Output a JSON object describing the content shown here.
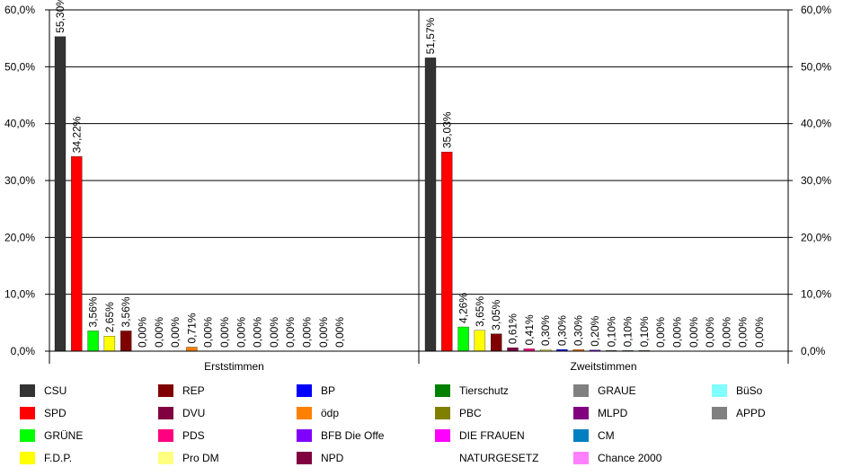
{
  "chart_data": {
    "type": "bar",
    "ylim": [
      0,
      60
    ],
    "yticks": [
      "0,0%",
      "10,0%",
      "20,0%",
      "30,0%",
      "40,0%",
      "50,0%",
      "60,0%"
    ],
    "grid": true,
    "legend_placement": "bottom",
    "groups": [
      {
        "label": "Erststimmen",
        "bars": [
          {
            "party": "CSU",
            "value": 55.3,
            "label": "55,30%",
            "color": "#333333"
          },
          {
            "party": "SPD",
            "value": 34.22,
            "label": "34,22%",
            "color": "#ff0000"
          },
          {
            "party": "GRÜNE",
            "value": 3.56,
            "label": "3,56%",
            "color": "#00ff00"
          },
          {
            "party": "F.D.P.",
            "value": 2.65,
            "label": "2,65%",
            "color": "#ffff00"
          },
          {
            "party": "REP",
            "value": 3.56,
            "label": "3,56%",
            "color": "#800000"
          },
          {
            "party": "DVU",
            "value": 0.0,
            "label": "0,00%",
            "color": "#800040"
          },
          {
            "party": "PDS",
            "value": 0.0,
            "label": "0,00%",
            "color": "#ff0080"
          },
          {
            "party": "Pro DM",
            "value": 0.0,
            "label": "0,00%",
            "color": "#ffff80"
          },
          {
            "party": "ödp",
            "value": 0.71,
            "label": "0,71%",
            "color": "#ff8000"
          },
          {
            "party": "BP",
            "value": 0.0,
            "label": "0,00%",
            "color": "#0000ff"
          },
          {
            "party": "BFB Die Offe",
            "value": 0.0,
            "label": "0,00%",
            "color": "#8000ff"
          },
          {
            "party": "NPD",
            "value": 0.0,
            "label": "0,00%",
            "color": "#800040"
          },
          {
            "party": "Tierschutz",
            "value": 0.0,
            "label": "0,00%",
            "color": "#008000"
          },
          {
            "party": "PBC",
            "value": 0.0,
            "label": "0,00%",
            "color": "#808000"
          },
          {
            "party": "DIE FRAUEN",
            "value": 0.0,
            "label": "0,00%",
            "color": "#ff00ff"
          },
          {
            "party": "GRAUE",
            "value": 0.0,
            "label": "0,00%",
            "color": "#808080"
          },
          {
            "party": "MLPD",
            "value": 0.0,
            "label": "0,00%",
            "color": "#800080"
          },
          {
            "party": "CM",
            "value": 0.0,
            "label": "0,00%",
            "color": "#0080c0"
          }
        ]
      },
      {
        "label": "Zweitstimmen",
        "bars": [
          {
            "party": "CSU",
            "value": 51.57,
            "label": "51,57%",
            "color": "#333333"
          },
          {
            "party": "SPD",
            "value": 35.03,
            "label": "35,03%",
            "color": "#ff0000"
          },
          {
            "party": "GRÜNE",
            "value": 4.26,
            "label": "4,26%",
            "color": "#00ff00"
          },
          {
            "party": "F.D.P.",
            "value": 3.65,
            "label": "3,65%",
            "color": "#ffff00"
          },
          {
            "party": "REP",
            "value": 3.05,
            "label": "3,05%",
            "color": "#800000"
          },
          {
            "party": "DVU",
            "value": 0.61,
            "label": "0,61%",
            "color": "#800040"
          },
          {
            "party": "PDS",
            "value": 0.41,
            "label": "0,41%",
            "color": "#ff0080"
          },
          {
            "party": "Pro DM",
            "value": 0.3,
            "label": "0,30%",
            "color": "#ffff80"
          },
          {
            "party": "BP",
            "value": 0.3,
            "label": "0,30%",
            "color": "#0000ff"
          },
          {
            "party": "ödp",
            "value": 0.3,
            "label": "0,30%",
            "color": "#ff8000"
          },
          {
            "party": "BFB Die Offe",
            "value": 0.2,
            "label": "0,20%",
            "color": "#8000ff"
          },
          {
            "party": "NPD",
            "value": 0.1,
            "label": "0,10%",
            "color": "#800040"
          },
          {
            "party": "Tierschutz",
            "value": 0.1,
            "label": "0,10%",
            "color": "#008000"
          },
          {
            "party": "PBC",
            "value": 0.1,
            "label": "0,10%",
            "color": "#808000"
          },
          {
            "party": "DIE FRAUEN",
            "value": 0.0,
            "label": "0,00%",
            "color": "#ff00ff"
          },
          {
            "party": "GRAUE",
            "value": 0.0,
            "label": "0,00%",
            "color": "#808080"
          },
          {
            "party": "MLPD",
            "value": 0.0,
            "label": "0,00%",
            "color": "#800080"
          },
          {
            "party": "CM",
            "value": 0.0,
            "label": "0,00%",
            "color": "#0080c0"
          },
          {
            "party": "Chance 2000",
            "value": 0.0,
            "label": "0,00%",
            "color": "#ff80ff"
          },
          {
            "party": "BüSo",
            "value": 0.0,
            "label": "0,00%",
            "color": "#80ffff"
          },
          {
            "party": "APPD",
            "value": 0.0,
            "label": "0,00%",
            "color": "#808080"
          }
        ]
      }
    ],
    "legend": [
      {
        "label": "CSU",
        "color": "#333333"
      },
      {
        "label": "SPD",
        "color": "#ff0000"
      },
      {
        "label": "GRÜNE",
        "color": "#00ff00"
      },
      {
        "label": "F.D.P.",
        "color": "#ffff00"
      },
      {
        "label": "REP",
        "color": "#800000"
      },
      {
        "label": "DVU",
        "color": "#800040"
      },
      {
        "label": "PDS",
        "color": "#ff0080"
      },
      {
        "label": "Pro DM",
        "color": "#ffff80"
      },
      {
        "label": "BP",
        "color": "#0000ff"
      },
      {
        "label": "ödp",
        "color": "#ff8000"
      },
      {
        "label": "BFB Die Offe",
        "color": "#8000ff"
      },
      {
        "label": "NPD",
        "color": "#800040"
      },
      {
        "label": "Tierschutz",
        "color": "#008000"
      },
      {
        "label": "PBC",
        "color": "#808000"
      },
      {
        "label": "DIE FRAUEN",
        "color": "#ff00ff"
      },
      {
        "label": "NATURGESETZ",
        "color": "#ffffff"
      },
      {
        "label": "GRAUE",
        "color": "#808080"
      },
      {
        "label": "MLPD",
        "color": "#800080"
      },
      {
        "label": "CM",
        "color": "#0080c0"
      },
      {
        "label": "Chance 2000",
        "color": "#ff80ff"
      },
      {
        "label": "BüSo",
        "color": "#80ffff"
      },
      {
        "label": "APPD",
        "color": "#808080"
      }
    ]
  }
}
